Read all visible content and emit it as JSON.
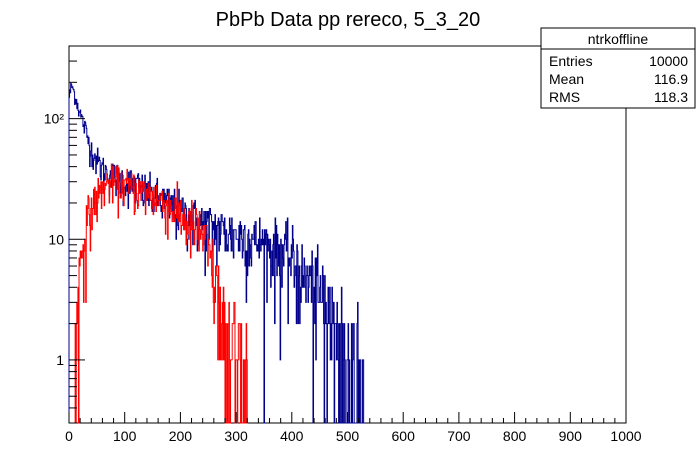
{
  "chart_data": {
    "type": "histogram",
    "title": "PbPb Data pp rereco, 5_3_20",
    "xlabel": "",
    "ylabel": "",
    "xlim": [
      0,
      1000
    ],
    "ylim": [
      0.3,
      400
    ],
    "y_scale": "log",
    "x_ticks": [
      0,
      100,
      200,
      300,
      400,
      500,
      600,
      700,
      800,
      900,
      1000
    ],
    "x_tick_labels": [
      "0",
      "100",
      "200",
      "300",
      "400",
      "500",
      "600",
      "700",
      "800",
      "900",
      "1000"
    ],
    "y_ticks": [
      1,
      10,
      100
    ],
    "y_tick_labels": [
      "1",
      "10",
      "10²"
    ],
    "stats_box": {
      "name": "ntrkoffline",
      "rows": [
        {
          "label": "Entries",
          "value": "10000"
        },
        {
          "label": "Mean",
          "value": "116.9"
        },
        {
          "label": "RMS",
          "value": "118.3"
        }
      ]
    },
    "series": [
      {
        "color": "#00008b",
        "x": [
          0,
          5,
          10,
          20,
          30,
          40,
          50,
          60,
          80,
          100,
          120,
          150,
          180,
          200,
          230,
          250,
          270,
          300,
          330,
          350,
          380,
          400,
          420,
          440,
          460,
          480,
          500,
          520,
          530
        ],
        "y": [
          150,
          190,
          160,
          110,
          80,
          55,
          45,
          38,
          33,
          30,
          28,
          23,
          19,
          17,
          14,
          13,
          12,
          11,
          10,
          9,
          8,
          7,
          5,
          4,
          2.5,
          1.5,
          1,
          0.6,
          0.4
        ]
      },
      {
        "color": "#ff0000",
        "x": [
          10,
          15,
          20,
          25,
          30,
          35,
          40,
          50,
          60,
          70,
          80,
          100,
          120,
          150,
          180,
          200,
          220,
          240,
          250,
          260,
          270,
          280,
          300,
          320
        ],
        "y": [
          0.4,
          2,
          6,
          9,
          12,
          15,
          18,
          22,
          26,
          29,
          30,
          28,
          26,
          23,
          19,
          16,
          13,
          11,
          8,
          5,
          3,
          2,
          1,
          0.5
        ]
      }
    ]
  }
}
